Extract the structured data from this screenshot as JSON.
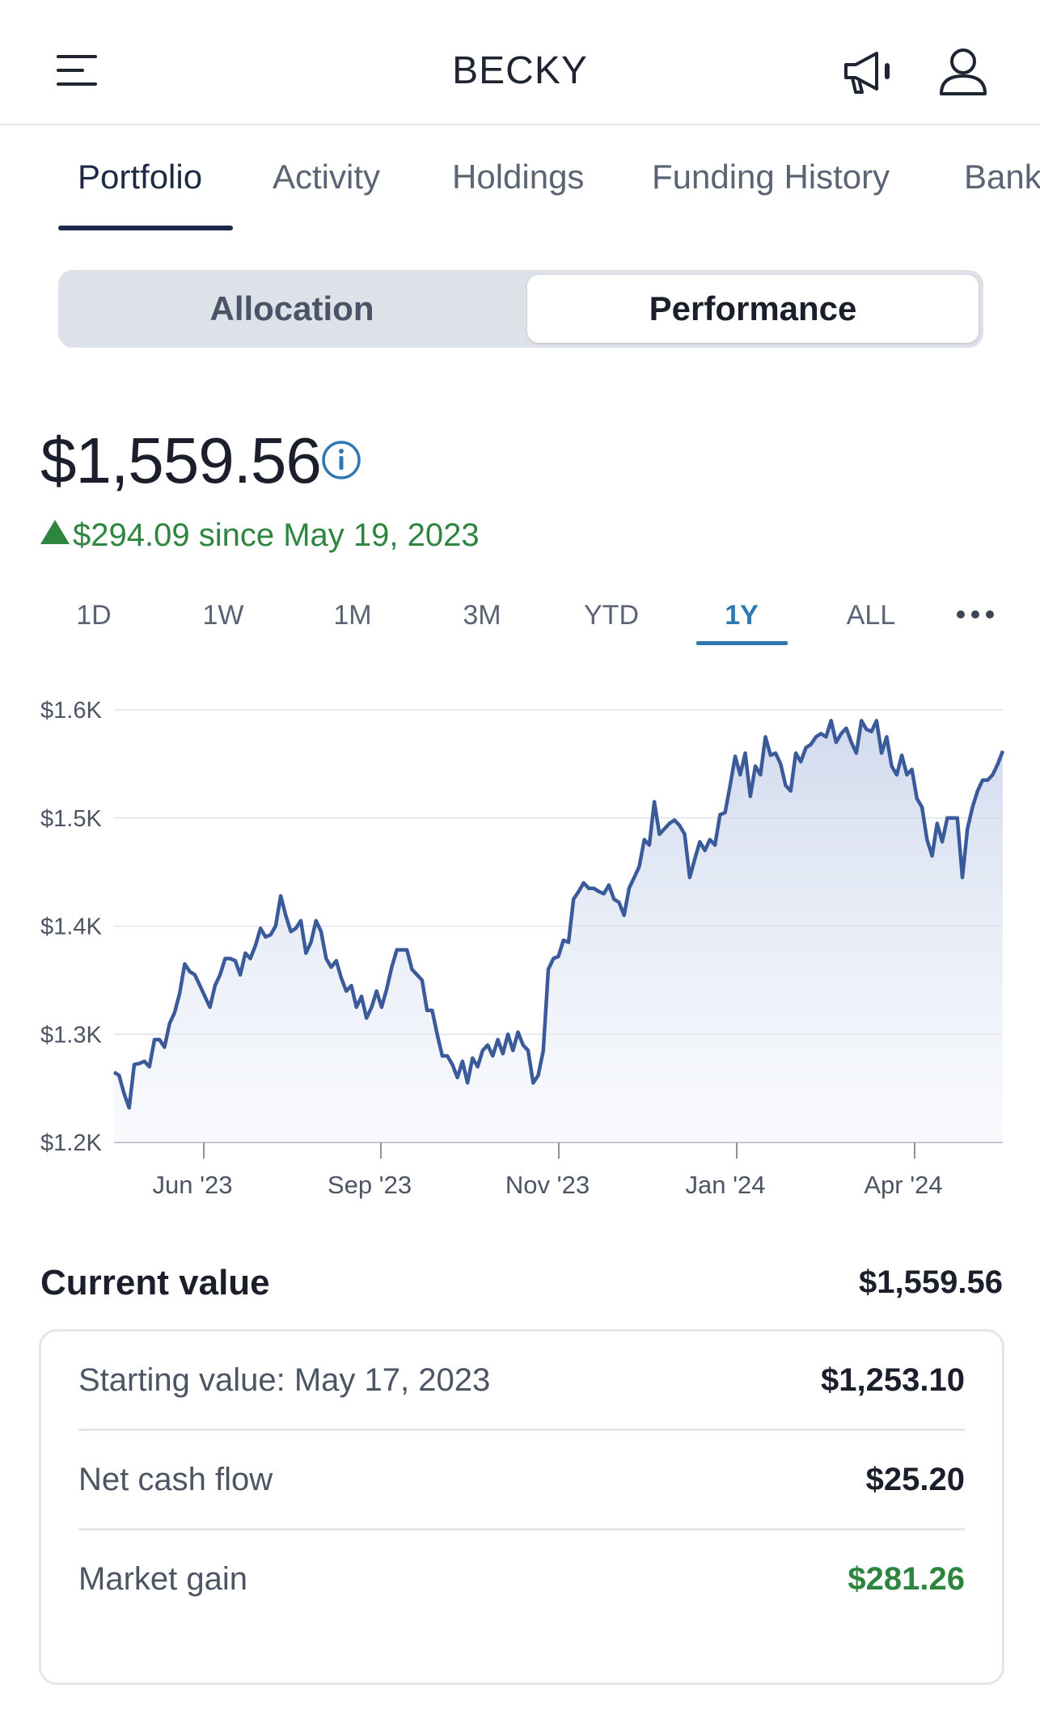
{
  "header": {
    "title": "BECKY",
    "menu_icon": "hamburger-menu-icon",
    "announcement_icon": "megaphone-icon",
    "profile_icon": "user-icon"
  },
  "tabs": [
    {
      "label": "Portfolio",
      "active": true
    },
    {
      "label": "Activity",
      "active": false
    },
    {
      "label": "Holdings",
      "active": false
    },
    {
      "label": "Funding History",
      "active": false
    },
    {
      "label": "Bank",
      "active": false
    }
  ],
  "segment": {
    "allocation": "Allocation",
    "performance": "Performance",
    "selected": "Performance"
  },
  "summary": {
    "value": "$1,559.56",
    "change": "$294.09 since May 19, 2023",
    "change_color": "#2e8540"
  },
  "ranges": [
    {
      "label": "1D",
      "active": false
    },
    {
      "label": "1W",
      "active": false
    },
    {
      "label": "1M",
      "active": false
    },
    {
      "label": "3M",
      "active": false
    },
    {
      "label": "YTD",
      "active": false
    },
    {
      "label": "1Y",
      "active": true
    },
    {
      "label": "ALL",
      "active": false
    }
  ],
  "chart_data": {
    "type": "area",
    "x_ticks": [
      "Jun '23",
      "Sep '23",
      "Nov '23",
      "Jan '24",
      "Apr '24"
    ],
    "y_ticks": [
      "$1.2K",
      "$1.3K",
      "$1.4K",
      "$1.5K",
      "$1.6K"
    ],
    "ylim": [
      1200,
      1600
    ],
    "grid": true,
    "line_color": "#3a5a9a",
    "series": [
      {
        "values": [
          1265,
          1262,
          1245,
          1232,
          1272,
          1273,
          1275,
          1270,
          1295,
          1295,
          1288,
          1310,
          1320,
          1338,
          1365,
          1358,
          1355,
          1345,
          1335,
          1325,
          1345,
          1355,
          1370,
          1370,
          1368,
          1355,
          1375,
          1370,
          1382,
          1398,
          1390,
          1392,
          1400,
          1428,
          1410,
          1395,
          1398,
          1405,
          1375,
          1385,
          1405,
          1395,
          1370,
          1362,
          1368,
          1352,
          1340,
          1345,
          1325,
          1335,
          1315,
          1325,
          1340,
          1325,
          1342,
          1362,
          1378,
          1378,
          1378,
          1360,
          1355,
          1350,
          1322,
          1322,
          1300,
          1280,
          1280,
          1272,
          1260,
          1275,
          1255,
          1278,
          1270,
          1285,
          1290,
          1280,
          1295,
          1282,
          1300,
          1285,
          1302,
          1290,
          1285,
          1255,
          1262,
          1285,
          1360,
          1370,
          1372,
          1387,
          1385,
          1425,
          1432,
          1440,
          1435,
          1435,
          1432,
          1430,
          1438,
          1425,
          1422,
          1410,
          1435,
          1445,
          1455,
          1480,
          1475,
          1515,
          1485,
          1490,
          1495,
          1498,
          1493,
          1485,
          1445,
          1462,
          1478,
          1470,
          1480,
          1475,
          1503,
          1505,
          1530,
          1557,
          1540,
          1560,
          1520,
          1548,
          1540,
          1575,
          1558,
          1560,
          1550,
          1530,
          1525,
          1560,
          1552,
          1565,
          1568,
          1575,
          1578,
          1575,
          1590,
          1570,
          1578,
          1583,
          1570,
          1560,
          1590,
          1582,
          1580,
          1590,
          1560,
          1575,
          1548,
          1540,
          1558,
          1540,
          1545,
          1518,
          1510,
          1480,
          1465,
          1495,
          1478,
          1500,
          1500,
          1500,
          1445,
          1490,
          1510,
          1525,
          1535,
          1535,
          1540,
          1550,
          1562
        ]
      }
    ]
  },
  "current_value": {
    "label": "Current value",
    "value": "$1,559.56"
  },
  "details": [
    {
      "label": "Starting value: May 17, 2023",
      "value": "$1,253.10",
      "highlight": false
    },
    {
      "label": "Net cash flow",
      "value": "$25.20",
      "highlight": false
    },
    {
      "label": "Market gain",
      "value": "$281.26",
      "highlight": true
    }
  ]
}
